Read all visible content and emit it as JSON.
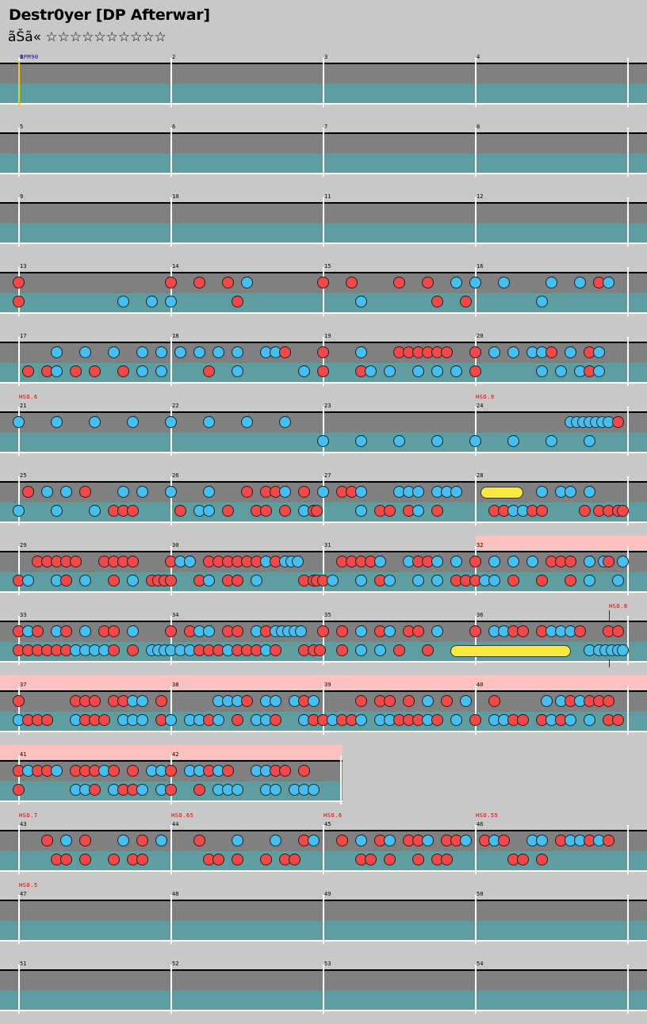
{
  "title": "Destr0yer [DP Afterwar]",
  "subtitle": "ãŠã«  ☆☆☆☆☆☆☆☆☆☆",
  "colors": {
    "don": "#f44848",
    "ka": "#44c0f0",
    "lane_top": "#808080",
    "lane_bottom": "#5f9ea0",
    "gogo": "#ffc0c0",
    "roll": "#f8e840"
  },
  "rows": [
    {
      "measures": [
        1,
        2,
        3,
        4
      ],
      "annotations": [],
      "bpm_label": "BPM90",
      "top": [],
      "bottom": []
    },
    {
      "measures": [
        5,
        6,
        7,
        8
      ],
      "annotations": [],
      "top": [],
      "bottom": []
    },
    {
      "measures": [
        9,
        10,
        11,
        12
      ],
      "annotations": [],
      "top": [],
      "bottom": []
    },
    {
      "measures": [
        13,
        14,
        15,
        16
      ],
      "annotations": [],
      "top": "r24 r216 r252 r288 b312 r408 r444 r504 r540 b576 b600 b636 b696 b732 r756 b768",
      "bottom": "r24 b156 b192 b216 r300 b456 r552 r588 b684"
    },
    {
      "measures": [
        17,
        18,
        19,
        20
      ],
      "annotations": [],
      "top": "b72 b108 b144 b180 b204 b228 b252 b276 b300 b336 b348 r360 r408 b456 r504 r516 r528 r540 r552 r564 r600 b624 b648 b672 b684 r696 b720 r744 b756",
      "bottom": "r36 r60 b72 r96 r120 r156 b180 b204 r264 b300 b384 r408 r456 b468 b492 b528 b552 b576 r600 b684 b708 b732 r744 b756"
    },
    {
      "measures": [
        21,
        22,
        23,
        24
      ],
      "annotations": [
        {
          "x": 24,
          "text": "HSO.6"
        },
        {
          "x": 600,
          "text": "HSO.9"
        }
      ],
      "top": "b24 b72 b120 b168 b216 b264 b312 b360 b720 b728 b736 b744 b752 b760 b768 r780",
      "bottom": "b408 b456 b504 b552 b600 b648 b696 b744"
    },
    {
      "measures": [
        25,
        26,
        27,
        28
      ],
      "annotations": [],
      "top": "r36 b60 b84 r108 b156 b180 b216 b264 r312 r336 r348 b360 r384 b408 r432 r444 b456 b504 b516 b528 b552 b564 b576 b684 b708 b720 b744",
      "bottom": "b24 b72 b120 r144 r156 r168 r228 b252 b264 r288 r324 r336 r360 b384 r396 r400 b456 r480 r492 r516 b528 r552 r624 r636 b648 b660 r672 r684 r738 r756 r768 r780 r786",
      "rolls": [
        {
          "lane": "top",
          "x1": 606,
          "x2": 660
        }
      ]
    },
    {
      "measures": [
        29,
        30,
        31,
        32
      ],
      "annotations": [],
      "top": "r48 r60 r72 r84 r96 r132 r144 r156 r168 r216 b228 b240 r264 r276 r288 r300 r312 r324 b336 r348 b360 b368 b376 r432 r444 r456 r468 b480 b516 r528 r540 b552 b576 r600 b624 b648 b672 r696 r708 r720 b744 b762 r768 b786",
      "bottom": "r24 b36 b72 r84 b108 r144 b168 r192 r200 r208 r216 r252 b264 r288 r300 b324 r384 r396 r400 r408 b420 b456 r480 b492 b528 b552 r576 r588 r600 b612 b624 r648 r684 r720 b744 b780"
    },
    {
      "measures": [
        33,
        34,
        35,
        36
      ],
      "annotations": [
        {
          "x": 768,
          "text": "HSO.8"
        }
      ],
      "top": "r24 b36 r48 b72 r84 b108 r132 r144 b168 r216 r240 b252 b264 r288 r300 b324 r336 b348 b356 b364 b372 b380 r408 r432 b456 r480 b492 r516 r528 b552 r600 b624 b636 r648 r660 r684 b696 b708 b720 r732 r768 r780",
      "bottom": "r24 r36 r48 r60 r72 r84 b96 b108 b120 b132 r144 r168 b192 b200 b208 b216 b228 b240 r252 r264 r276 b288 r300 r312 r324 b336 r348 r384 r396 r404 r432 b456 b480 r504 r540 b744 b756 b764 b772 b780 b786",
      "rolls": [
        {
          "lane": "bottom",
          "x1": 568,
          "x2": 720
        }
      ],
      "ticks": [
        768
      ]
    },
    {
      "measures": [
        37,
        38,
        39,
        40
      ],
      "annotations": [],
      "top": "r24 r96 r108 r120 r144 r156 b168 b180 r204 b276 b288 b300 r312 b336 b348 b372 r384 b396 r456 r480 r492 r516 b540 r564 b588 r624 b690 b708 r720 b732 r744 r756 r768",
      "bottom": "b24 r36 r48 r60 b96 r108 r120 r132 b156 b168 b180 r204 b216 b240 b252 r264 b276 r300 b324 b336 r348 b384 r396 r408 b420 r432 r444 b456 b480 b492 r504 r516 r528 b540 r552 b576 r600 b624 b636 r648 r660 r684 b696 r708 b720 b744 r768 r780",
      "gogo": [
        0,
        816
      ]
    },
    {
      "measures": [
        41,
        42
      ],
      "annotations": [],
      "width": 432,
      "top": "r24 b36 r48 r60 b72 r96 r108 r120 b132 r144 r168 b192 b204 r216 b240 b252 r264 b276 r288 b324 b336 r348 r360 r384",
      "bottom": "r24 b96 b108 r120 b144 r156 r168 b180 b204 r216 r252 b276 b288 b300 b336 b348 b372 b384 b396",
      "gogo": [
        0,
        432
      ]
    },
    {
      "measures": [
        43,
        44,
        45,
        46
      ],
      "annotations": [
        {
          "x": 24,
          "text": "HSO.7"
        },
        {
          "x": 216,
          "text": "HSO.65"
        },
        {
          "x": 408,
          "text": "HSO.6"
        },
        {
          "x": 600,
          "text": "HSO.55"
        }
      ],
      "top": "r60 b84 r108 b156 r180 b204 r252 b300 b348 r384 b396 r432 b456 r480 b492 r516 r528 b540 r564 r576 b588 r612 b624 r636 b672 b684 r708 b720 b732 r744 b756 r768",
      "bottom": "r72 r84 r108 r144 r168 r180 r264 r276 r300 r336 r360 r372 r456 r468 r492 r528 r552 r564 r648 r660 r684"
    },
    {
      "measures": [
        47,
        48,
        49,
        50
      ],
      "annotations": [
        {
          "x": 24,
          "text": "HSO.5"
        }
      ],
      "top": [],
      "bottom": []
    },
    {
      "measures": [
        51,
        52,
        53,
        54
      ],
      "annotations": [],
      "top": [],
      "bottom": []
    }
  ]
}
